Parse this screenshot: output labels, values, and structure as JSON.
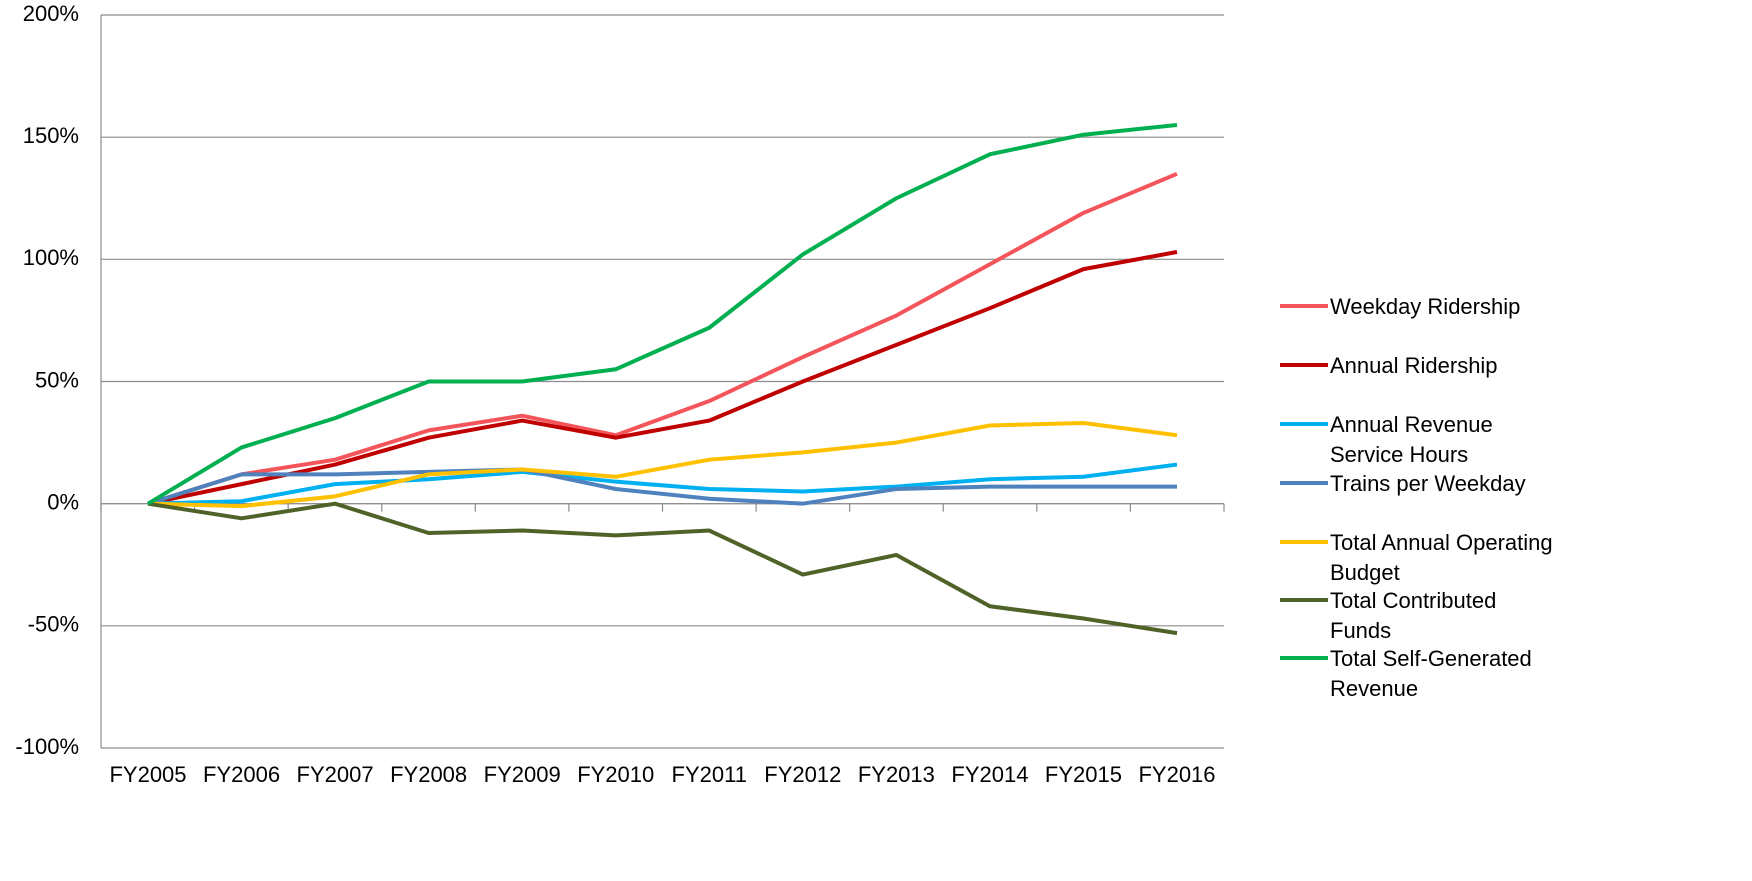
{
  "chart_data": {
    "type": "line",
    "categories": [
      "FY2005",
      "FY2006",
      "FY2007",
      "FY2008",
      "FY2009",
      "FY2010",
      "FY2011",
      "FY2012",
      "FY2013",
      "FY2014",
      "FY2015",
      "FY2016"
    ],
    "ylim": [
      -100,
      200
    ],
    "yticks": [
      {
        "value": -100,
        "label": "-100%"
      },
      {
        "value": -50,
        "label": "-50%"
      },
      {
        "value": 0,
        "label": "0%"
      },
      {
        "value": 50,
        "label": "50%"
      },
      {
        "value": 100,
        "label": "100%"
      },
      {
        "value": 150,
        "label": "150%"
      },
      {
        "value": 200,
        "label": "200%"
      }
    ],
    "grid": true,
    "legend": "right",
    "series": [
      {
        "name": "Weekday Ridership",
        "color": "#f4555a",
        "values": [
          0,
          12,
          18,
          30,
          36,
          28,
          42,
          60,
          77,
          98,
          119,
          135
        ]
      },
      {
        "name": "Annual Ridership",
        "color": "#c00000",
        "values": [
          0,
          8,
          16,
          27,
          34,
          27,
          34,
          50,
          65,
          80,
          96,
          103
        ]
      },
      {
        "name": "Annual Revenue Service Hours",
        "color": "#00b0f0",
        "values": [
          0,
          1,
          8,
          10,
          13,
          9,
          6,
          5,
          7,
          10,
          11,
          16
        ]
      },
      {
        "name": "Trains per Weekday",
        "color": "#4f81bd",
        "values": [
          0,
          12,
          12,
          13,
          14,
          6,
          2,
          0,
          6,
          7,
          7,
          7
        ]
      },
      {
        "name": "Total Annual Operating Budget",
        "color": "#ffc000",
        "values": [
          0,
          -1,
          3,
          12,
          14,
          11,
          18,
          21,
          25,
          32,
          33,
          28
        ]
      },
      {
        "name": "Total Contributed Funds",
        "color": "#4f6228",
        "values": [
          0,
          -6,
          0,
          -12,
          -11,
          -13,
          -11,
          -29,
          -21,
          -42,
          -47,
          -53
        ]
      },
      {
        "name": "Total Self-Generated Revenue",
        "color": "#00b050",
        "values": [
          0,
          23,
          35,
          50,
          50,
          55,
          72,
          102,
          125,
          143,
          151,
          155
        ]
      }
    ]
  }
}
